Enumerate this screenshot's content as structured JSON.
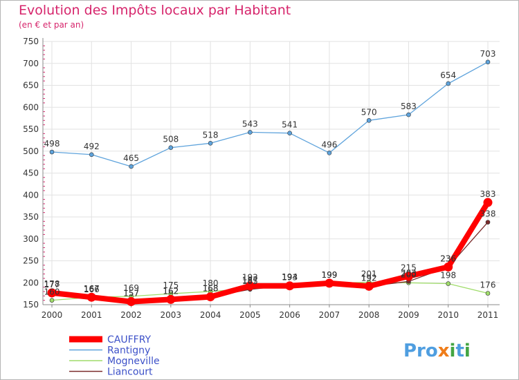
{
  "chart_data": {
    "type": "line",
    "title": "Evolution des Impôts locaux par Habitant",
    "subtitle": "(en € et par an)",
    "xlabel": "",
    "ylabel": "",
    "x": [
      "2000",
      "2001",
      "2002",
      "2003",
      "2004",
      "2005",
      "2006",
      "2007",
      "2008",
      "2009",
      "2010",
      "2011"
    ],
    "ylim": [
      150,
      750
    ],
    "yticks": [
      "150",
      "200",
      "250",
      "300",
      "350",
      "400",
      "450",
      "500",
      "550",
      "600",
      "650",
      "700",
      "750"
    ],
    "grid": true,
    "legend_position": "bottom-left",
    "series": [
      {
        "name": "CAUFFRY",
        "color": "#ff0000",
        "values": [
          177,
          167,
          157,
          162,
          168,
          193,
          193,
          199,
          192,
          215,
          236,
          383
        ]
      },
      {
        "name": "Rantigny",
        "color": "#5ea3dc",
        "values": [
          498,
          492,
          465,
          508,
          518,
          543,
          541,
          496,
          570,
          583,
          654,
          703
        ]
      },
      {
        "name": "Mogneville",
        "color": "#9fdc6a",
        "values": [
          160,
          167,
          169,
          175,
          180,
          187,
          194,
          199,
          201,
          200,
          198,
          176
        ]
      },
      {
        "name": "Liancourt",
        "color": "#7a2a2a",
        "values": [
          178,
          166,
          157,
          162,
          168,
          185,
          194,
          199,
          192,
          203,
          236,
          338
        ]
      }
    ]
  },
  "brand": {
    "prefix": "Pro",
    "x_letter": "x",
    "i1": "i",
    "t": "t",
    "i2": "i"
  }
}
